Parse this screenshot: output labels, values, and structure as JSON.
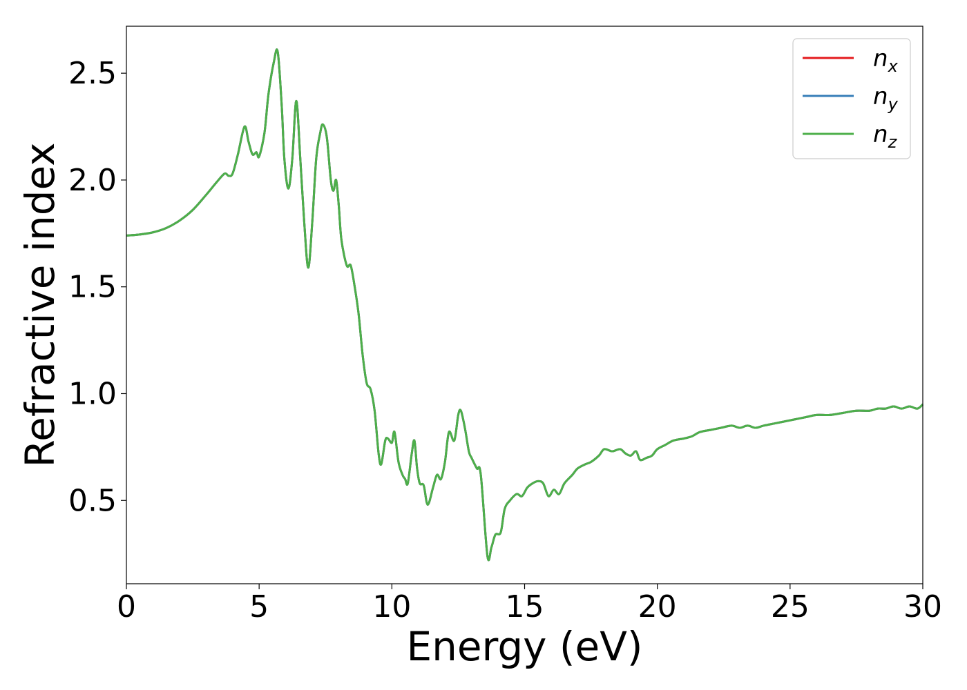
{
  "chart_data": {
    "type": "line",
    "title": "",
    "xlabel": "Energy (eV)",
    "ylabel": "Refractive index",
    "xlim": [
      0,
      30
    ],
    "ylim": [
      0.11,
      2.72
    ],
    "xticks": [
      0,
      5,
      10,
      15,
      20,
      25,
      30
    ],
    "yticks": [
      0.5,
      1.0,
      1.5,
      2.0,
      2.5
    ],
    "xtick_labels": [
      "0",
      "5",
      "10",
      "15",
      "20",
      "25",
      "30"
    ],
    "ytick_labels": [
      "0.5",
      "1.0",
      "1.5",
      "2.0",
      "2.5"
    ],
    "grid": false,
    "legend_position": "top-right",
    "series": [
      {
        "name": "n",
        "sub": "x",
        "color": "#e41a1c",
        "x": [
          0,
          0.5,
          1,
          1.5,
          2,
          2.5,
          3,
          3.4,
          3.7,
          3.85,
          4.0,
          4.2,
          4.45,
          4.6,
          4.75,
          4.9,
          5.0,
          5.2,
          5.35,
          5.55,
          5.7,
          5.85,
          5.95,
          6.1,
          6.25,
          6.4,
          6.55,
          6.7,
          6.85,
          7.0,
          7.15,
          7.3,
          7.4,
          7.55,
          7.7,
          7.8,
          7.9,
          8.0,
          8.1,
          8.3,
          8.45,
          8.6,
          8.75,
          8.9,
          9.05,
          9.2,
          9.35,
          9.5,
          9.6,
          9.75,
          9.85,
          10.0,
          10.1,
          10.25,
          10.4,
          10.5,
          10.6,
          10.75,
          10.85,
          10.95,
          11.05,
          11.2,
          11.35,
          11.55,
          11.7,
          11.85,
          12.0,
          12.15,
          12.35,
          12.5,
          12.6,
          12.75,
          12.9,
          13.0,
          13.2,
          13.35,
          13.6,
          13.75,
          13.9,
          14.1,
          14.25,
          14.45,
          14.7,
          14.9,
          15.1,
          15.3,
          15.5,
          15.7,
          15.9,
          16.1,
          16.3,
          16.5,
          16.8,
          17.0,
          17.3,
          17.5,
          17.8,
          18.0,
          18.3,
          18.6,
          18.8,
          19.0,
          19.2,
          19.35,
          19.6,
          19.8,
          20.0,
          20.3,
          20.6,
          21.0,
          21.3,
          21.6,
          22.0,
          22.4,
          22.8,
          23.1,
          23.4,
          23.7,
          24.0,
          24.4,
          24.8,
          25.2,
          25.6,
          26.0,
          26.5,
          27.0,
          27.5,
          28.0,
          28.3,
          28.6,
          28.9,
          29.2,
          29.5,
          29.8,
          30.0
        ],
        "y": [
          1.74,
          1.745,
          1.755,
          1.775,
          1.81,
          1.86,
          1.93,
          1.99,
          2.03,
          2.02,
          2.03,
          2.12,
          2.25,
          2.18,
          2.12,
          2.13,
          2.11,
          2.22,
          2.4,
          2.55,
          2.6,
          2.35,
          2.1,
          1.96,
          2.1,
          2.37,
          2.1,
          1.8,
          1.59,
          1.8,
          2.1,
          2.22,
          2.26,
          2.2,
          2.0,
          1.95,
          2.0,
          1.88,
          1.72,
          1.6,
          1.6,
          1.5,
          1.37,
          1.18,
          1.05,
          1.02,
          0.92,
          0.72,
          0.67,
          0.78,
          0.79,
          0.77,
          0.82,
          0.68,
          0.62,
          0.6,
          0.58,
          0.72,
          0.78,
          0.65,
          0.58,
          0.57,
          0.48,
          0.56,
          0.62,
          0.6,
          0.68,
          0.82,
          0.78,
          0.9,
          0.92,
          0.84,
          0.73,
          0.7,
          0.65,
          0.62,
          0.24,
          0.28,
          0.34,
          0.35,
          0.46,
          0.5,
          0.53,
          0.52,
          0.56,
          0.58,
          0.59,
          0.58,
          0.52,
          0.55,
          0.53,
          0.58,
          0.62,
          0.65,
          0.67,
          0.68,
          0.71,
          0.74,
          0.73,
          0.74,
          0.72,
          0.71,
          0.73,
          0.69,
          0.7,
          0.71,
          0.74,
          0.76,
          0.78,
          0.79,
          0.8,
          0.82,
          0.83,
          0.84,
          0.85,
          0.84,
          0.85,
          0.84,
          0.85,
          0.86,
          0.87,
          0.88,
          0.89,
          0.9,
          0.9,
          0.91,
          0.92,
          0.92,
          0.93,
          0.93,
          0.94,
          0.93,
          0.94,
          0.93,
          0.95
        ]
      },
      {
        "name": "n",
        "sub": "y",
        "color": "#377eb8",
        "x": [
          0,
          0.5,
          1,
          1.5,
          2,
          2.5,
          3,
          3.4,
          3.7,
          3.85,
          4.0,
          4.2,
          4.45,
          4.6,
          4.75,
          4.9,
          5.0,
          5.2,
          5.35,
          5.55,
          5.7,
          5.85,
          5.95,
          6.1,
          6.25,
          6.4,
          6.55,
          6.7,
          6.85,
          7.0,
          7.15,
          7.3,
          7.4,
          7.55,
          7.7,
          7.8,
          7.9,
          8.0,
          8.1,
          8.3,
          8.45,
          8.6,
          8.75,
          8.9,
          9.05,
          9.2,
          9.35,
          9.5,
          9.6,
          9.75,
          9.85,
          10.0,
          10.1,
          10.25,
          10.4,
          10.5,
          10.6,
          10.75,
          10.85,
          10.95,
          11.05,
          11.2,
          11.35,
          11.55,
          11.7,
          11.85,
          12.0,
          12.15,
          12.35,
          12.5,
          12.6,
          12.75,
          12.9,
          13.0,
          13.2,
          13.35,
          13.6,
          13.75,
          13.9,
          14.1,
          14.25,
          14.45,
          14.7,
          14.9,
          15.1,
          15.3,
          15.5,
          15.7,
          15.9,
          16.1,
          16.3,
          16.5,
          16.8,
          17.0,
          17.3,
          17.5,
          17.8,
          18.0,
          18.3,
          18.6,
          18.8,
          19.0,
          19.2,
          19.35,
          19.6,
          19.8,
          20.0,
          20.3,
          20.6,
          21.0,
          21.3,
          21.6,
          22.0,
          22.4,
          22.8,
          23.1,
          23.4,
          23.7,
          24.0,
          24.4,
          24.8,
          25.2,
          25.6,
          26.0,
          26.5,
          27.0,
          27.5,
          28.0,
          28.3,
          28.6,
          28.9,
          29.2,
          29.5,
          29.8,
          30.0
        ],
        "y": [
          1.74,
          1.745,
          1.755,
          1.775,
          1.81,
          1.86,
          1.93,
          1.99,
          2.03,
          2.02,
          2.03,
          2.12,
          2.25,
          2.18,
          2.12,
          2.13,
          2.11,
          2.22,
          2.4,
          2.55,
          2.6,
          2.35,
          2.1,
          1.96,
          2.1,
          2.37,
          2.1,
          1.8,
          1.59,
          1.8,
          2.1,
          2.22,
          2.26,
          2.2,
          2.0,
          1.95,
          2.0,
          1.88,
          1.72,
          1.6,
          1.6,
          1.5,
          1.37,
          1.18,
          1.05,
          1.02,
          0.92,
          0.72,
          0.67,
          0.78,
          0.79,
          0.77,
          0.82,
          0.68,
          0.62,
          0.6,
          0.58,
          0.72,
          0.78,
          0.65,
          0.58,
          0.57,
          0.48,
          0.56,
          0.62,
          0.6,
          0.68,
          0.82,
          0.78,
          0.9,
          0.92,
          0.84,
          0.73,
          0.7,
          0.65,
          0.62,
          0.24,
          0.28,
          0.34,
          0.35,
          0.46,
          0.5,
          0.53,
          0.52,
          0.56,
          0.58,
          0.59,
          0.58,
          0.52,
          0.55,
          0.53,
          0.58,
          0.62,
          0.65,
          0.67,
          0.68,
          0.71,
          0.74,
          0.73,
          0.74,
          0.72,
          0.71,
          0.73,
          0.69,
          0.7,
          0.71,
          0.74,
          0.76,
          0.78,
          0.79,
          0.8,
          0.82,
          0.83,
          0.84,
          0.85,
          0.84,
          0.85,
          0.84,
          0.85,
          0.86,
          0.87,
          0.88,
          0.89,
          0.9,
          0.9,
          0.91,
          0.92,
          0.92,
          0.93,
          0.93,
          0.94,
          0.93,
          0.94,
          0.93,
          0.95
        ]
      },
      {
        "name": "n",
        "sub": "z",
        "color": "#4daf4a",
        "x": [
          0,
          0.5,
          1,
          1.5,
          2,
          2.5,
          3,
          3.4,
          3.7,
          3.85,
          4.0,
          4.2,
          4.45,
          4.6,
          4.75,
          4.9,
          5.0,
          5.2,
          5.35,
          5.55,
          5.7,
          5.85,
          5.95,
          6.1,
          6.25,
          6.4,
          6.55,
          6.7,
          6.85,
          7.0,
          7.15,
          7.3,
          7.4,
          7.55,
          7.7,
          7.8,
          7.9,
          8.0,
          8.1,
          8.3,
          8.45,
          8.6,
          8.75,
          8.9,
          9.05,
          9.2,
          9.35,
          9.5,
          9.6,
          9.75,
          9.85,
          10.0,
          10.1,
          10.25,
          10.4,
          10.5,
          10.6,
          10.75,
          10.85,
          10.95,
          11.05,
          11.2,
          11.35,
          11.55,
          11.7,
          11.85,
          12.0,
          12.15,
          12.35,
          12.5,
          12.6,
          12.75,
          12.9,
          13.0,
          13.2,
          13.35,
          13.6,
          13.75,
          13.9,
          14.1,
          14.25,
          14.45,
          14.7,
          14.9,
          15.1,
          15.3,
          15.5,
          15.7,
          15.9,
          16.1,
          16.3,
          16.5,
          16.8,
          17.0,
          17.3,
          17.5,
          17.8,
          18.0,
          18.3,
          18.6,
          18.8,
          19.0,
          19.2,
          19.35,
          19.6,
          19.8,
          20.0,
          20.3,
          20.6,
          21.0,
          21.3,
          21.6,
          22.0,
          22.4,
          22.8,
          23.1,
          23.4,
          23.7,
          24.0,
          24.4,
          24.8,
          25.2,
          25.6,
          26.0,
          26.5,
          27.0,
          27.5,
          28.0,
          28.3,
          28.6,
          28.9,
          29.2,
          29.5,
          29.8,
          30.0
        ],
        "y": [
          1.74,
          1.745,
          1.755,
          1.775,
          1.81,
          1.86,
          1.93,
          1.99,
          2.03,
          2.02,
          2.03,
          2.12,
          2.25,
          2.18,
          2.12,
          2.13,
          2.11,
          2.22,
          2.4,
          2.55,
          2.6,
          2.35,
          2.1,
          1.96,
          2.1,
          2.37,
          2.1,
          1.8,
          1.59,
          1.8,
          2.1,
          2.22,
          2.26,
          2.2,
          2.0,
          1.95,
          2.0,
          1.88,
          1.72,
          1.6,
          1.6,
          1.5,
          1.37,
          1.18,
          1.05,
          1.02,
          0.92,
          0.72,
          0.67,
          0.78,
          0.79,
          0.77,
          0.82,
          0.68,
          0.62,
          0.6,
          0.58,
          0.72,
          0.78,
          0.65,
          0.58,
          0.57,
          0.48,
          0.56,
          0.62,
          0.6,
          0.68,
          0.82,
          0.78,
          0.9,
          0.92,
          0.84,
          0.73,
          0.7,
          0.65,
          0.62,
          0.24,
          0.28,
          0.34,
          0.35,
          0.46,
          0.5,
          0.53,
          0.52,
          0.56,
          0.58,
          0.59,
          0.58,
          0.52,
          0.55,
          0.53,
          0.58,
          0.62,
          0.65,
          0.67,
          0.68,
          0.71,
          0.74,
          0.73,
          0.74,
          0.72,
          0.71,
          0.73,
          0.69,
          0.7,
          0.71,
          0.74,
          0.76,
          0.78,
          0.79,
          0.8,
          0.82,
          0.83,
          0.84,
          0.85,
          0.84,
          0.85,
          0.84,
          0.85,
          0.86,
          0.87,
          0.88,
          0.89,
          0.9,
          0.9,
          0.91,
          0.92,
          0.92,
          0.93,
          0.93,
          0.94,
          0.93,
          0.94,
          0.93,
          0.95
        ]
      }
    ]
  }
}
